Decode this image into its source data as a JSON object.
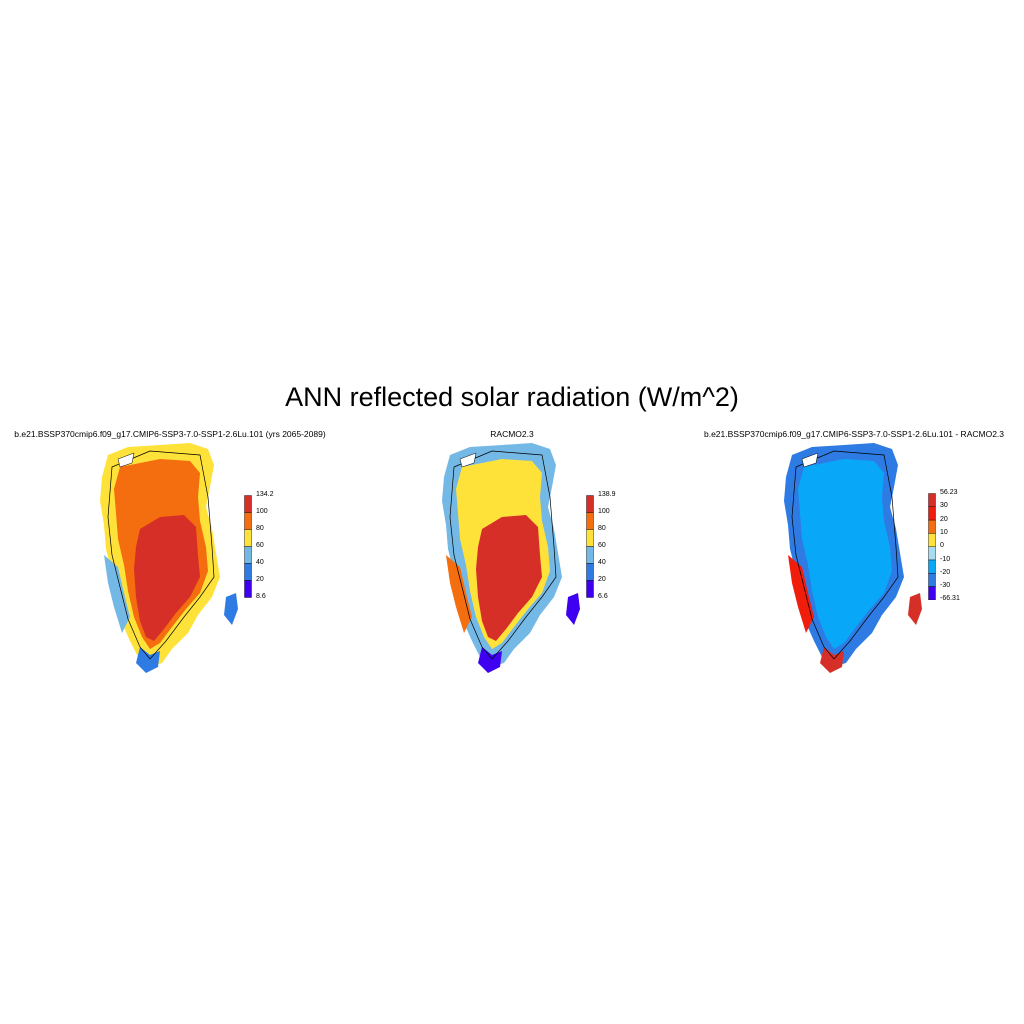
{
  "title": "ANN reflected solar radiation (W/m^2)",
  "panels": [
    {
      "title": "b.e21.BSSP370cmip6.f09_g17.CMIP6-SSP3-7.0-SSP1-2.6Lu.101 (yrs 2065-2089)",
      "colorbar": {
        "labels": [
          "134.2",
          "100",
          "80",
          "60",
          "40",
          "20",
          "8.6"
        ],
        "colors": [
          "#d62f27",
          "#f46d0f",
          "#fee23a",
          "#74b8e6",
          "#2e7be3",
          "#3f00f2"
        ]
      },
      "field": {
        "coast": "#fee23a",
        "ring": "#f46d0f",
        "core": "#d62f27",
        "margin": "#74b8e6",
        "south": "#2e7be3"
      }
    },
    {
      "title": "RACMO2.3",
      "colorbar": {
        "labels": [
          "138.9",
          "100",
          "80",
          "60",
          "40",
          "20",
          "6.6"
        ],
        "colors": [
          "#d62f27",
          "#f46d0f",
          "#fee23a",
          "#74b8e6",
          "#2e7be3",
          "#3f00f2"
        ]
      },
      "field": {
        "coast": "#74b8e6",
        "ring": "#fee23a",
        "core": "#d62f27",
        "margin": "#f46d0f",
        "south": "#3f00f2"
      }
    },
    {
      "title": "b.e21.BSSP370cmip6.f09_g17.CMIP6-SSP3-7.0-SSP1-2.6Lu.101 - RACMO2.3",
      "colorbar": {
        "labels": [
          "56.23",
          "30",
          "20",
          "10",
          "0",
          "-10",
          "-20",
          "-30",
          "-66.31"
        ],
        "colors": [
          "#d62f27",
          "#f01c0c",
          "#f46d0f",
          "#fee23a",
          "#a6dcf0",
          "#08a7f8",
          "#2e7be3",
          "#3f00f2"
        ]
      },
      "field": {
        "coast": "#2e7be3",
        "ring": "#08a7f8",
        "core": "#08a7f8",
        "margin": "#f01c0c",
        "south": "#d62f27"
      }
    }
  ]
}
